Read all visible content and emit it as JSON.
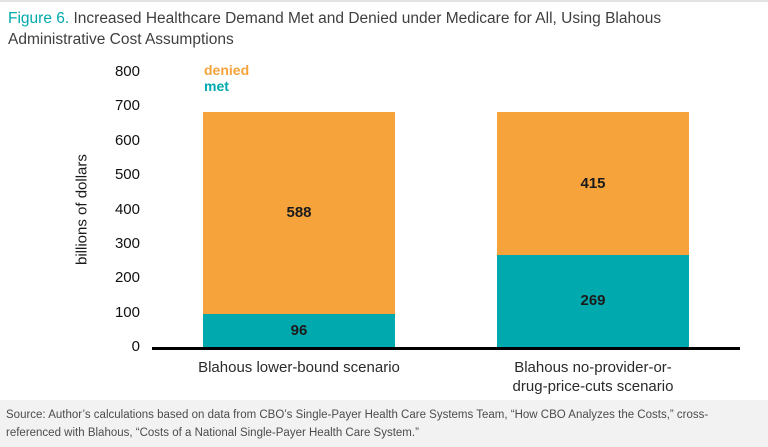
{
  "figure": {
    "label": "Figure 6.",
    "title": " Increased Healthcare Demand Met and Denied under Medicare for All, Using Blahous Administrative Cost Assumptions"
  },
  "chart_data": {
    "type": "bar",
    "stacked": true,
    "title": "Increased Healthcare Demand Met and Denied under Medicare for All, Using Blahous Administrative Cost Assumptions",
    "categories": [
      "Blahous lower-bound scenario",
      "Blahous no-provider-or-\ndrug-price-cuts scenario"
    ],
    "series": [
      {
        "name": "met",
        "color": "#00a9ad",
        "values": [
          96,
          269
        ]
      },
      {
        "name": "denied",
        "color": "#f6a33c",
        "values": [
          588,
          415
        ]
      }
    ],
    "ylabel": "billions of dollars",
    "ylim": [
      0,
      800
    ],
    "ytick_step": 100,
    "legend": [
      "denied",
      "met"
    ],
    "legend_position": "top-left",
    "grid": false
  },
  "source": "Source: Author’s calculations based on data from CBO’s Single-Payer Health Care Systems Team, “How CBO Analyzes the Costs,” cross-referenced with Blahous, “Costs of a National Single-Payer Health Care System.”"
}
